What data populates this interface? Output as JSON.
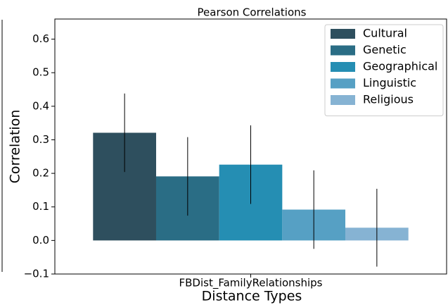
{
  "chart_data": {
    "type": "bar",
    "title": "Pearson Correlations",
    "categories": [
      "FBDist_FamilyRelationships"
    ],
    "x_label": "Distance Types",
    "y_label": "Correlation",
    "series": [
      {
        "name": "Cultural",
        "color": "#2e4f5e",
        "values": [
          0.321
        ],
        "errors": [
          0.117
        ]
      },
      {
        "name": "Genetic",
        "color": "#2a6d85",
        "values": [
          0.191
        ],
        "errors": [
          0.117
        ]
      },
      {
        "name": "Geographical",
        "color": "#258eb3",
        "values": [
          0.226
        ],
        "errors": [
          0.117
        ]
      },
      {
        "name": "Linguistic",
        "color": "#56a0c4",
        "values": [
          0.092
        ],
        "errors": [
          0.117
        ]
      },
      {
        "name": "Religious",
        "color": "#86b3d3",
        "values": [
          0.038
        ],
        "errors": [
          0.116
        ]
      }
    ],
    "ylim": [
      -0.1,
      0.66
    ],
    "yticks": [
      {
        "value": -0.1,
        "label": "−0.1"
      },
      {
        "value": 0,
        "label": "0.0"
      },
      0.1,
      0.2,
      0.3,
      0.4,
      0.5,
      0.6
    ],
    "legend": "upper right"
  }
}
